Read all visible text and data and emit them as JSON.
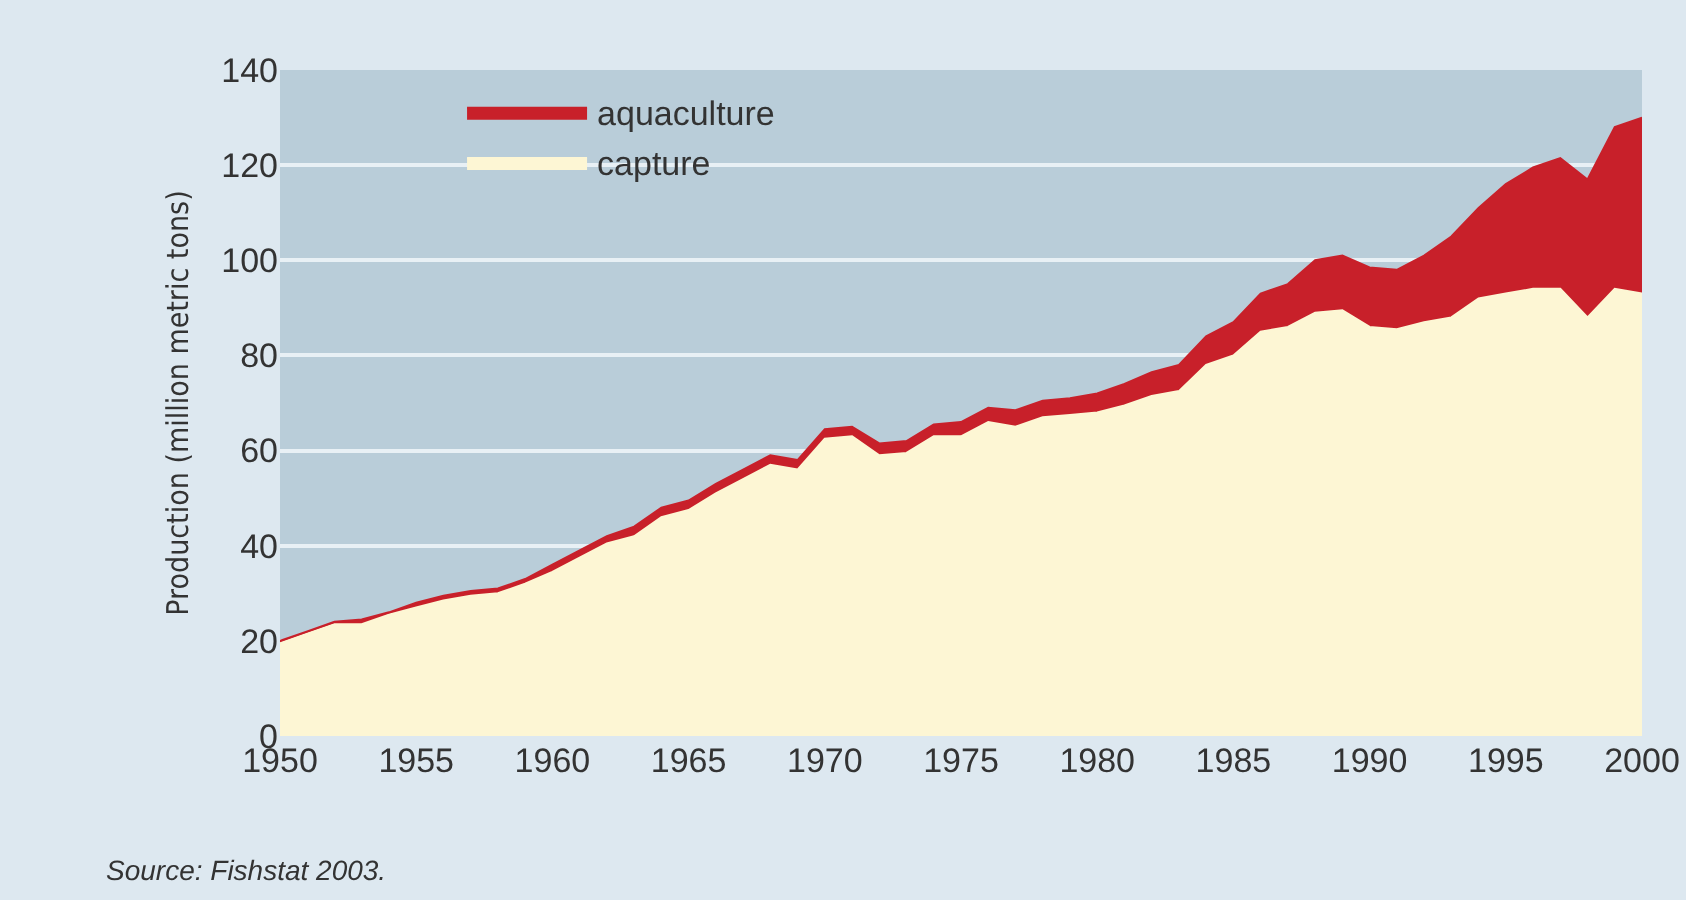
{
  "chart_data": {
    "type": "area",
    "stacked": true,
    "ylabel": "Production (million metric tons)",
    "x": [
      1950,
      1951,
      1952,
      1953,
      1954,
      1955,
      1956,
      1957,
      1958,
      1959,
      1960,
      1961,
      1962,
      1963,
      1964,
      1965,
      1966,
      1967,
      1968,
      1969,
      1970,
      1971,
      1972,
      1973,
      1974,
      1975,
      1976,
      1977,
      1978,
      1979,
      1980,
      1981,
      1982,
      1983,
      1984,
      1985,
      1986,
      1987,
      1988,
      1989,
      1990,
      1991,
      1992,
      1993,
      1994,
      1995,
      1996,
      1997,
      1998,
      1999,
      2000
    ],
    "series": [
      {
        "name": "capture",
        "color": "#fdf6d4",
        "values": [
          19.5,
          21.5,
          23.5,
          23.5,
          25.5,
          27,
          28.5,
          29.5,
          30,
          32,
          34.5,
          37.5,
          40.5,
          42,
          46,
          47.5,
          51,
          54,
          57,
          56,
          62.5,
          63,
          59,
          59.5,
          63,
          63,
          66,
          65,
          67,
          67.5,
          68,
          69.5,
          71.5,
          72.5,
          78,
          80,
          85,
          86,
          89,
          89.5,
          86,
          85.5,
          87,
          88,
          92,
          93,
          94,
          94,
          88,
          94,
          93
        ]
      },
      {
        "name": "aquaculture",
        "color": "#c8202a",
        "values": [
          0.5,
          0.5,
          0.5,
          1,
          0.5,
          1,
          1,
          1,
          1,
          1,
          1.5,
          1.5,
          1.5,
          2,
          2,
          2,
          2,
          2,
          2,
          2,
          2,
          2,
          2.5,
          2.5,
          2.5,
          3,
          3,
          3.5,
          3.5,
          3.5,
          4,
          4.5,
          5,
          5.5,
          6,
          7,
          8,
          9,
          11,
          11.5,
          12.5,
          12.5,
          14,
          17,
          19,
          23,
          25.5,
          27.5,
          29,
          34,
          37
        ]
      }
    ],
    "xlim": [
      1950,
      2000
    ],
    "xticks": [
      1950,
      1955,
      1960,
      1965,
      1970,
      1975,
      1980,
      1985,
      1990,
      1995,
      2000
    ],
    "ylim": [
      0,
      140
    ],
    "yticks": [
      0,
      20,
      40,
      60,
      80,
      100,
      120,
      140
    ],
    "grid": "y",
    "legend": "top left",
    "annotations": [
      "Source: Fishstat 2003."
    ]
  }
}
